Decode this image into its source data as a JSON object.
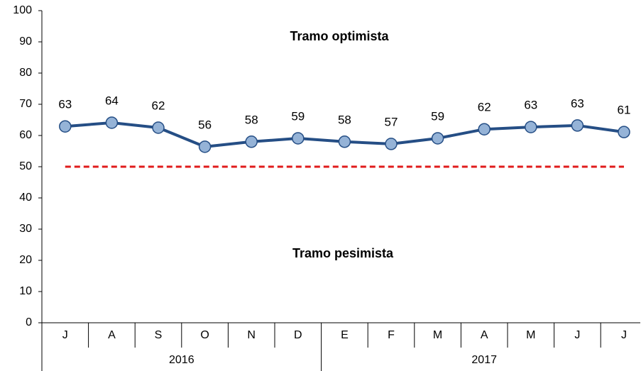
{
  "chart_data": {
    "type": "line",
    "categories": [
      "J",
      "A",
      "S",
      "O",
      "N",
      "D",
      "E",
      "F",
      "M",
      "A",
      "M",
      "J",
      "J"
    ],
    "groups": [
      {
        "label": "2016",
        "count": 6
      },
      {
        "label": "2017",
        "count": 7
      }
    ],
    "values": [
      62.9,
      64.1,
      62.5,
      56.4,
      58,
      59.1,
      58,
      57.3,
      59.1,
      62,
      62.7,
      63.2,
      61.1
    ],
    "value_labels": [
      "63",
      "64",
      "62",
      "56",
      "58",
      "59",
      "58",
      "57",
      "59",
      "62",
      "63",
      "63",
      "61"
    ],
    "color": "#254e85",
    "marker_color": "#95b3d7",
    "reference_line": {
      "value": 50,
      "color": "#e01b1b"
    },
    "annotations": [
      "Tramo optimista",
      "Tramo pesimista"
    ],
    "ylim": [
      0,
      100
    ],
    "yticks": [
      0,
      10,
      20,
      30,
      40,
      50,
      60,
      70,
      80,
      90,
      100
    ],
    "grid": false
  }
}
